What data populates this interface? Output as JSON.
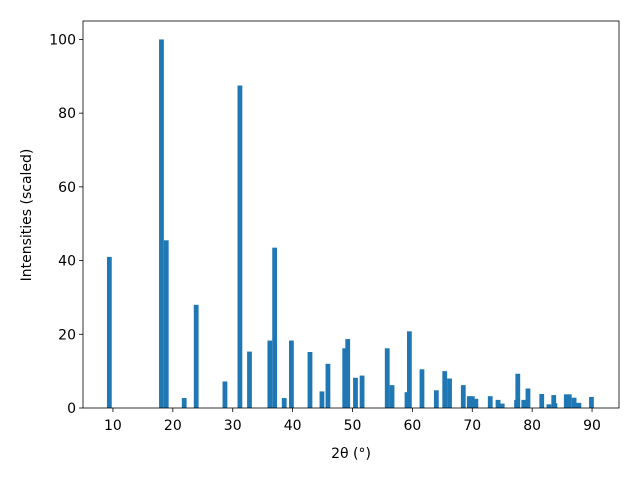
{
  "chart_data": {
    "type": "bar",
    "xlabel": "2θ (°)",
    "ylabel": "Intensities (scaled)",
    "x": [
      9.4,
      18.1,
      18.9,
      21.9,
      23.9,
      28.7,
      31.2,
      32.8,
      36.2,
      37.0,
      38.6,
      39.8,
      42.9,
      44.9,
      45.9,
      48.7,
      49.2,
      50.5,
      51.6,
      55.8,
      56.6,
      59.1,
      59.5,
      61.6,
      64.0,
      65.4,
      66.2,
      68.5,
      69.5,
      70.0,
      70.6,
      73.0,
      74.3,
      75.0,
      77.4,
      77.6,
      78.6,
      79.3,
      81.6,
      82.8,
      83.6,
      83.8,
      85.7,
      86.2,
      87.0,
      87.8,
      89.9
    ],
    "values": [
      41,
      100,
      45.5,
      2.7,
      28,
      7.2,
      87.5,
      15.3,
      18.3,
      43.5,
      2.7,
      18.3,
      15.2,
      4.5,
      12,
      16.2,
      18.7,
      8.2,
      8.8,
      16.2,
      6.2,
      4.3,
      20.8,
      10.5,
      4.8,
      10,
      8,
      6.2,
      3.2,
      3.2,
      2.5,
      3.2,
      2.2,
      1.2,
      2.2,
      9.3,
      2.2,
      5.3,
      3.8,
      1,
      3.5,
      1.3,
      3.7,
      3.7,
      2.8,
      1.4,
      3
    ],
    "color": "#1f77b4",
    "xlim": [
      5,
      94.5
    ],
    "xticks": [
      10,
      20,
      30,
      40,
      50,
      60,
      70,
      80,
      90
    ],
    "ylim": [
      0,
      105
    ],
    "yticks": [
      0,
      20,
      40,
      60,
      80,
      100
    ],
    "grid": false
  }
}
